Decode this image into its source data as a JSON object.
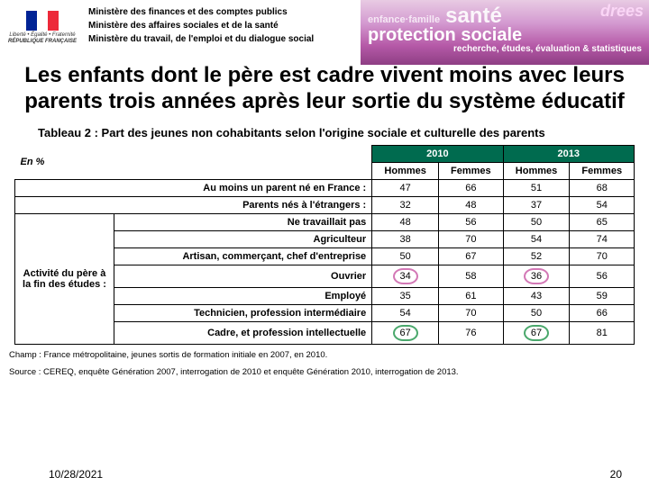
{
  "header": {
    "logo": {
      "rf_line1": "Liberté • Égalité • Fraternité",
      "rf_line2": "RÉPUBLIQUE FRANÇAISE"
    },
    "flag_colors": [
      "#002395",
      "#ffffff",
      "#ed2939"
    ],
    "ministries": [
      "Ministère des finances et des comptes publics",
      "Ministère des affaires sociales et de la santé",
      "Ministère du travail, de l'emploi et du dialogue social"
    ],
    "banner": {
      "small1": "enfance·famille",
      "big1": "santé",
      "big2": "protection sociale",
      "sub": "recherche, études, évaluation & statistiques",
      "drees": "drees"
    }
  },
  "title": "Les enfants dont le père est cadre vivent moins avec leurs parents trois années après leur sortie du système éducatif",
  "subtitle": "Tableau 2 : Part des jeunes non cohabitants selon l'origine sociale et culturelle des parents",
  "table": {
    "unit": "En %",
    "years": [
      "2010",
      "2013"
    ],
    "genders": [
      "Hommes",
      "Femmes",
      "Hommes",
      "Femmes"
    ],
    "section1": [
      {
        "label": "Au moins un parent né en France :",
        "values": [
          47,
          66,
          51,
          68
        ]
      },
      {
        "label": "Parents nés à l'étrangers :",
        "values": [
          32,
          48,
          37,
          54
        ]
      }
    ],
    "section2_title": "Activité du père à la fin des études :",
    "section2": [
      {
        "label": "Ne travaillait pas",
        "values": [
          48,
          56,
          50,
          65
        ]
      },
      {
        "label": "Agriculteur",
        "values": [
          38,
          70,
          54,
          74
        ]
      },
      {
        "label": "Artisan, commerçant, chef d'entreprise",
        "values": [
          50,
          67,
          52,
          70
        ]
      },
      {
        "label": "Ouvrier",
        "values": [
          34,
          58,
          36,
          56
        ],
        "circles": [
          {
            "i": 0,
            "color": "#d378b6"
          },
          {
            "i": 2,
            "color": "#d378b6"
          }
        ]
      },
      {
        "label": "Employé",
        "values": [
          35,
          61,
          43,
          59
        ]
      },
      {
        "label": "Technicien, profession intermédiaire",
        "values": [
          54,
          70,
          50,
          66
        ]
      },
      {
        "label": "Cadre, et profession intellectuelle",
        "values": [
          67,
          76,
          67,
          81
        ],
        "circles": [
          {
            "i": 0,
            "color": "#4aa86c"
          },
          {
            "i": 2,
            "color": "#4aa86c"
          }
        ]
      }
    ],
    "year_bg": "#006b4f"
  },
  "footnotes": {
    "champ": "Champ : France métropolitaine, jeunes sortis de formation initiale en 2007, en 2010.",
    "source": "Source : CEREQ, enquête Génération 2007, interrogation de 2010 et enquête Génération 2010, interrogation de 2013."
  },
  "footer": {
    "date": "10/28/2021",
    "page": "20"
  }
}
